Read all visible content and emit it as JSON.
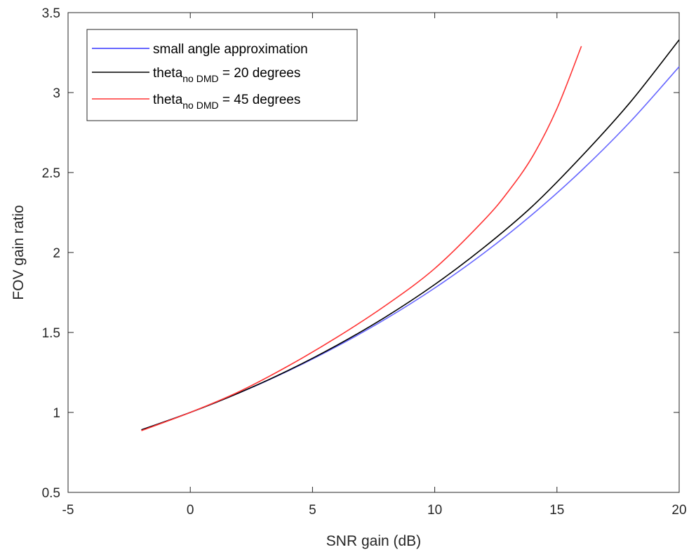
{
  "chart_data": {
    "type": "line",
    "title": "",
    "xlabel": "SNR gain (dB)",
    "ylabel": "FOV gain ratio",
    "xlim": [
      -5,
      20
    ],
    "ylim": [
      0.5,
      3.5
    ],
    "xticks": [
      "-5",
      "0",
      "5",
      "10",
      "15",
      "20"
    ],
    "yticks": [
      "0.5",
      "1",
      "1.5",
      "2",
      "2.5",
      "3",
      "3.5"
    ],
    "grid": false,
    "legend_position": "top-left",
    "series": [
      {
        "name": "small angle approximation",
        "color": "#6666ff",
        "x": [
          -2,
          0,
          2,
          4,
          6,
          8,
          10,
          12,
          14,
          16,
          18,
          20
        ],
        "y": [
          0.891,
          1.0,
          1.122,
          1.259,
          1.413,
          1.585,
          1.778,
          1.995,
          2.239,
          2.512,
          2.818,
          3.162
        ]
      },
      {
        "name_parts": [
          "theta",
          "no DMD",
          " = 20 degrees"
        ],
        "color": "#000000",
        "x": [
          -2,
          0,
          2,
          4,
          6,
          8,
          10,
          12,
          14,
          16,
          18,
          20
        ],
        "y": [
          0.891,
          1.0,
          1.123,
          1.262,
          1.42,
          1.598,
          1.8,
          2.03,
          2.29,
          2.6,
          2.94,
          3.33
        ]
      },
      {
        "name_parts": [
          "theta",
          "no DMD",
          " = 45 degrees"
        ],
        "color": "#ff3333",
        "x": [
          -2,
          0,
          2,
          4,
          6,
          8,
          10,
          12,
          13,
          14,
          15,
          16
        ],
        "y": [
          0.886,
          1.0,
          1.13,
          1.29,
          1.47,
          1.67,
          1.9,
          2.2,
          2.38,
          2.6,
          2.9,
          3.29
        ]
      }
    ]
  }
}
